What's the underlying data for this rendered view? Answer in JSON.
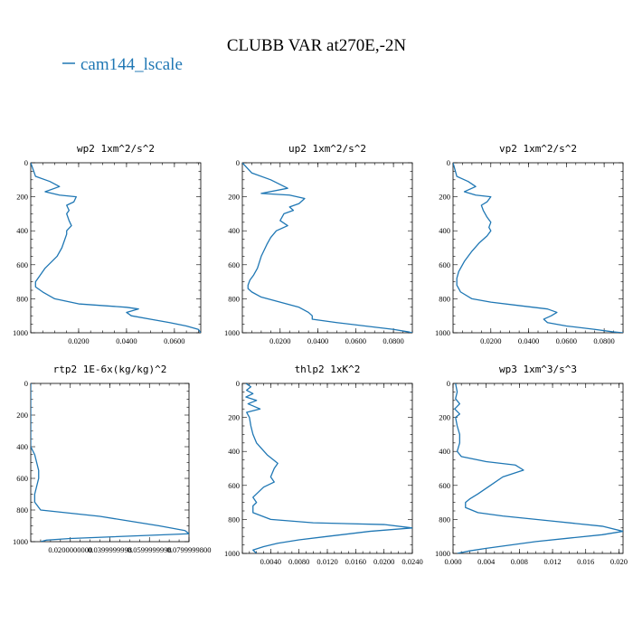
{
  "figure": {
    "suptitle": "CLUBB VAR at270E,-2N",
    "legend": {
      "label": "cam144_lscale",
      "color": "#1f77b4"
    }
  },
  "chart_data": [
    {
      "type": "line",
      "title": "wp2  1xm^2/s^2",
      "xlim": [
        0,
        0.071
      ],
      "ylim": [
        1000,
        0
      ],
      "xticks": [
        0.02,
        0.04,
        0.06
      ],
      "xtick_labels": [
        "0.0200",
        "0.0400",
        "0.0600"
      ],
      "yticks": [
        0,
        200,
        400,
        600,
        800,
        1000
      ],
      "series": [
        {
          "color": "#1f77b4",
          "x": [
            0.0,
            0.002,
            0.008,
            0.012,
            0.006,
            0.012,
            0.019,
            0.018,
            0.015,
            0.016,
            0.015,
            0.016,
            0.017,
            0.015,
            0.015,
            0.014,
            0.013,
            0.011,
            0.006,
            0.003,
            0.002,
            0.002,
            0.005,
            0.01,
            0.02,
            0.03,
            0.04,
            0.045,
            0.04,
            0.042,
            0.05,
            0.058,
            0.065,
            0.07,
            0.071
          ],
          "y": [
            0,
            80,
            110,
            140,
            170,
            190,
            200,
            230,
            250,
            280,
            300,
            340,
            370,
            400,
            420,
            460,
            500,
            550,
            620,
            680,
            700,
            730,
            760,
            800,
            830,
            840,
            850,
            860,
            880,
            900,
            920,
            940,
            960,
            980,
            1000
          ]
        }
      ]
    },
    {
      "type": "line",
      "title": "up2  1xm^2/s^2",
      "xlim": [
        0,
        0.09
      ],
      "ylim": [
        1000,
        0
      ],
      "xticks": [
        0.02,
        0.04,
        0.06,
        0.08
      ],
      "xtick_labels": [
        "0.0200",
        "0.0400",
        "0.0600",
        "0.0800"
      ],
      "yticks": [
        0,
        200,
        400,
        600,
        800,
        1000
      ],
      "series": [
        {
          "color": "#1f77b4",
          "x": [
            0.0,
            0.005,
            0.015,
            0.024,
            0.01,
            0.025,
            0.033,
            0.03,
            0.025,
            0.027,
            0.022,
            0.02,
            0.024,
            0.018,
            0.015,
            0.013,
            0.01,
            0.008,
            0.006,
            0.004,
            0.003,
            0.003,
            0.005,
            0.01,
            0.02,
            0.03,
            0.035,
            0.037,
            0.037,
            0.05,
            0.065,
            0.08,
            0.088,
            0.09
          ],
          "y": [
            0,
            60,
            100,
            150,
            180,
            190,
            210,
            240,
            260,
            280,
            300,
            340,
            370,
            400,
            440,
            480,
            550,
            620,
            660,
            690,
            720,
            740,
            760,
            790,
            820,
            850,
            880,
            900,
            920,
            940,
            960,
            980,
            995,
            1000
          ]
        }
      ]
    },
    {
      "type": "line",
      "title": "vp2  1xm^2/s^2",
      "xlim": [
        0,
        0.09
      ],
      "ylim": [
        1000,
        0
      ],
      "xticks": [
        0.02,
        0.04,
        0.06,
        0.08
      ],
      "xtick_labels": [
        "0.0200",
        "0.0400",
        "0.0600",
        "0.0800"
      ],
      "yticks": [
        0,
        200,
        400,
        600,
        800,
        1000
      ],
      "series": [
        {
          "color": "#1f77b4",
          "x": [
            0.0,
            0.002,
            0.008,
            0.012,
            0.006,
            0.012,
            0.02,
            0.018,
            0.015,
            0.016,
            0.018,
            0.02,
            0.019,
            0.02,
            0.018,
            0.014,
            0.01,
            0.006,
            0.003,
            0.002,
            0.002,
            0.004,
            0.01,
            0.02,
            0.035,
            0.05,
            0.055,
            0.052,
            0.048,
            0.05,
            0.06,
            0.075,
            0.085,
            0.09
          ],
          "y": [
            0,
            80,
            110,
            140,
            170,
            190,
            200,
            230,
            250,
            280,
            320,
            350,
            380,
            400,
            430,
            470,
            520,
            580,
            640,
            680,
            720,
            760,
            800,
            820,
            840,
            860,
            880,
            900,
            920,
            940,
            960,
            980,
            995,
            1000
          ]
        }
      ]
    },
    {
      "type": "line",
      "title": "rtp2  1E-6x(kg/kg)^2",
      "xlim": [
        0,
        0.08
      ],
      "ylim": [
        1000,
        0
      ],
      "xticks": [
        0.02,
        0.04,
        0.06,
        0.08
      ],
      "xtick_labels": [
        "0.0200000000",
        "0.0399999998",
        "0.0599999998",
        "0.0799999800"
      ],
      "yticks": [
        0,
        200,
        400,
        600,
        800,
        1000
      ],
      "series": [
        {
          "color": "#1f77b4",
          "x": [
            0.0,
            0.0,
            0.0,
            0.0,
            0.0,
            0.002,
            0.003,
            0.004,
            0.004,
            0.003,
            0.002,
            0.002,
            0.005,
            0.02,
            0.035,
            0.05,
            0.065,
            0.078,
            0.08,
            0.06,
            0.04,
            0.02,
            0.008,
            0.005
          ],
          "y": [
            0,
            100,
            200,
            300,
            400,
            450,
            500,
            550,
            600,
            650,
            700,
            750,
            800,
            820,
            840,
            870,
            900,
            930,
            950,
            960,
            970,
            980,
            990,
            1000
          ]
        }
      ]
    },
    {
      "type": "line",
      "title": "thlp2  1xK^2",
      "xlim": [
        0,
        0.024
      ],
      "ylim": [
        1000,
        0
      ],
      "xticks": [
        0.004,
        0.008,
        0.012,
        0.016,
        0.02,
        0.024
      ],
      "xtick_labels": [
        "0.0040",
        "0.0080",
        "0.0120",
        "0.0160",
        "0.0200",
        "0.0240"
      ],
      "yticks": [
        0,
        200,
        400,
        600,
        800,
        1000
      ],
      "series": [
        {
          "color": "#1f77b4",
          "x": [
            0.0005,
            0.0012,
            0.0006,
            0.0015,
            0.0005,
            0.002,
            0.0008,
            0.0025,
            0.0006,
            0.001,
            0.0012,
            0.0015,
            0.002,
            0.0035,
            0.005,
            0.0045,
            0.004,
            0.0045,
            0.003,
            0.0025,
            0.002,
            0.0015,
            0.002,
            0.0015,
            0.0015,
            0.004,
            0.01,
            0.02,
            0.024,
            0.018,
            0.012,
            0.008,
            0.005,
            0.003,
            0.0015,
            0.002
          ],
          "y": [
            0,
            20,
            40,
            60,
            80,
            100,
            120,
            150,
            170,
            200,
            250,
            300,
            350,
            420,
            470,
            500,
            550,
            580,
            610,
            630,
            650,
            670,
            700,
            720,
            760,
            800,
            820,
            830,
            850,
            870,
            900,
            920,
            940,
            960,
            980,
            1000
          ]
        }
      ]
    },
    {
      "type": "line",
      "title": "wp3  1xm^3/s^3",
      "xlim": [
        0,
        0.0205
      ],
      "ylim": [
        1000,
        0
      ],
      "xticks": [
        0.0,
        0.004,
        0.008,
        0.012,
        0.016,
        0.02
      ],
      "xtick_labels": [
        "0.000",
        "0.004",
        "0.008",
        "0.012",
        "0.016",
        "0.020"
      ],
      "yticks": [
        0,
        200,
        400,
        600,
        800,
        1000
      ],
      "series": [
        {
          "color": "#1f77b4",
          "x": [
            0.0003,
            0.0005,
            0.0003,
            0.0008,
            0.0002,
            0.0008,
            0.0003,
            0.0005,
            0.0008,
            0.0008,
            0.0005,
            0.001,
            0.004,
            0.0075,
            0.0085,
            0.006,
            0.0045,
            0.003,
            0.002,
            0.0015,
            0.0015,
            0.003,
            0.006,
            0.012,
            0.018,
            0.0205,
            0.018,
            0.014,
            0.01,
            0.007,
            0.004,
            0.002,
            0.0005
          ],
          "y": [
            0,
            50,
            90,
            120,
            150,
            180,
            200,
            250,
            300,
            350,
            400,
            430,
            460,
            480,
            510,
            550,
            600,
            650,
            680,
            700,
            730,
            760,
            780,
            810,
            840,
            870,
            890,
            910,
            930,
            950,
            970,
            985,
            1000
          ]
        }
      ]
    }
  ]
}
